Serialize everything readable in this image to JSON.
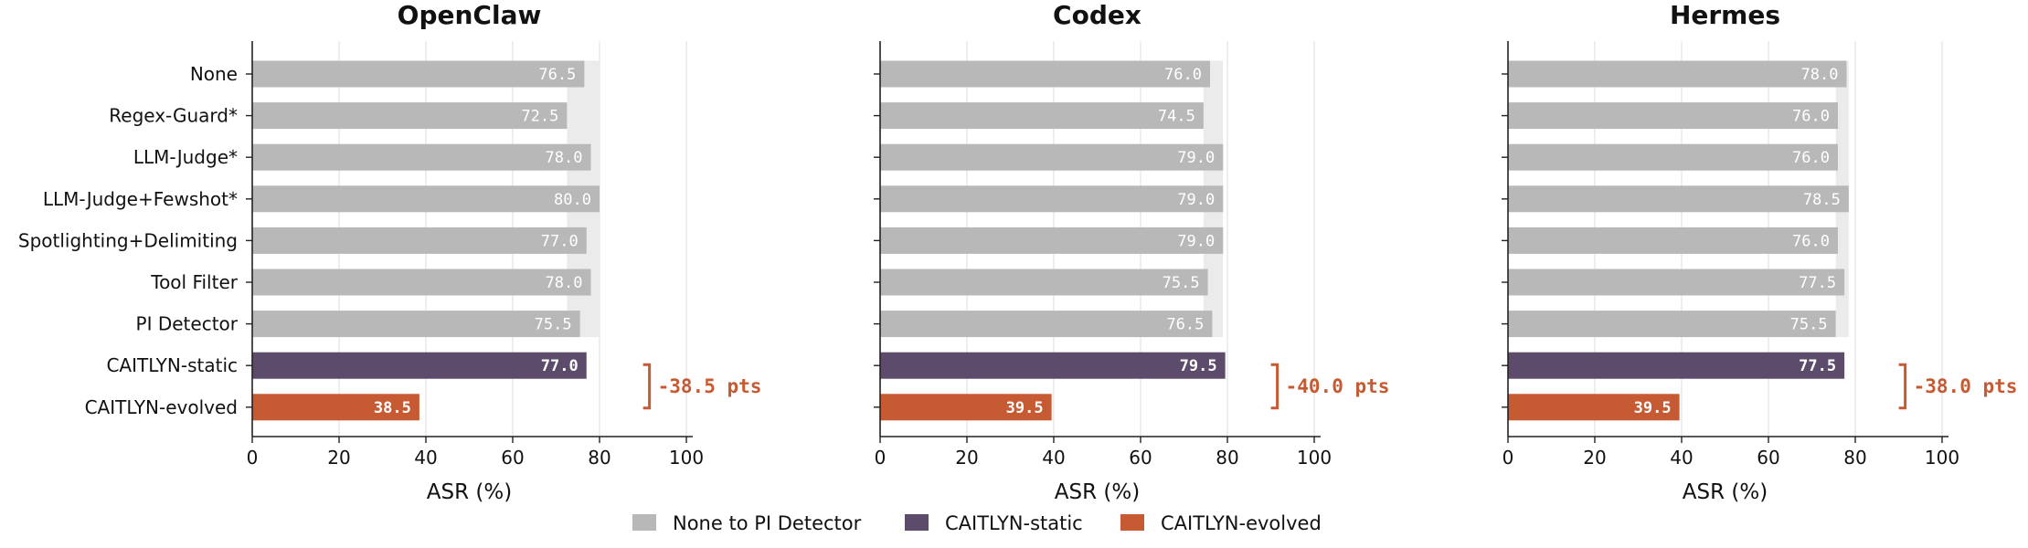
{
  "chart_data": {
    "type": "bar",
    "orientation": "horizontal",
    "categories": [
      "None",
      "Regex-Guard*",
      "LLM-Judge*",
      "LLM-Judge+Fewshot*",
      "Spotlighting+Delimiting",
      "Tool Filter",
      "PI Detector",
      "CAITLYN-static",
      "CAITLYN-evolved"
    ],
    "xlabel": "ASR (%)",
    "xlim": [
      0,
      100
    ],
    "xticks": [
      0,
      20,
      40,
      60,
      80,
      100
    ],
    "grid": "vertical",
    "legend_position": "bottom-center",
    "colors": {
      "baseline": "#b8b8b8",
      "band": "#ebebeb",
      "static": "#5c4b6a",
      "evolved": "#c55a33",
      "delta": "#c55a33"
    },
    "legend": [
      {
        "label": "None to PI Detector",
        "color": "#b8b8b8"
      },
      {
        "label": "CAITLYN-static",
        "color": "#5c4b6a"
      },
      {
        "label": "CAITLYN-evolved",
        "color": "#c55a33"
      }
    ],
    "panels": [
      {
        "title": "OpenClaw",
        "values": [
          76.5,
          72.5,
          78.0,
          80.0,
          77.0,
          78.0,
          75.5,
          77.0,
          38.5
        ],
        "value_labels": [
          "76.5",
          "72.5",
          "78.0",
          "80.0",
          "77.0",
          "78.0",
          "75.5",
          "77.0",
          "38.5"
        ],
        "band": [
          72.5,
          80.0
        ],
        "delta_label": "-38.5 pts"
      },
      {
        "title": "Codex",
        "values": [
          76.0,
          74.5,
          79.0,
          79.0,
          79.0,
          75.5,
          76.5,
          79.5,
          39.5
        ],
        "value_labels": [
          "76.0",
          "74.5",
          "79.0",
          "79.0",
          "79.0",
          "75.5",
          "76.5",
          "79.5",
          "39.5"
        ],
        "band": [
          74.5,
          79.0
        ],
        "delta_label": "-40.0 pts"
      },
      {
        "title": "Hermes",
        "values": [
          78.0,
          76.0,
          76.0,
          78.5,
          76.0,
          77.5,
          75.5,
          77.5,
          39.5
        ],
        "value_labels": [
          "78.0",
          "76.0",
          "76.0",
          "78.5",
          "76.0",
          "77.5",
          "75.5",
          "77.5",
          "39.5"
        ],
        "band": [
          75.5,
          78.5
        ],
        "delta_label": "-38.0 pts"
      }
    ]
  }
}
